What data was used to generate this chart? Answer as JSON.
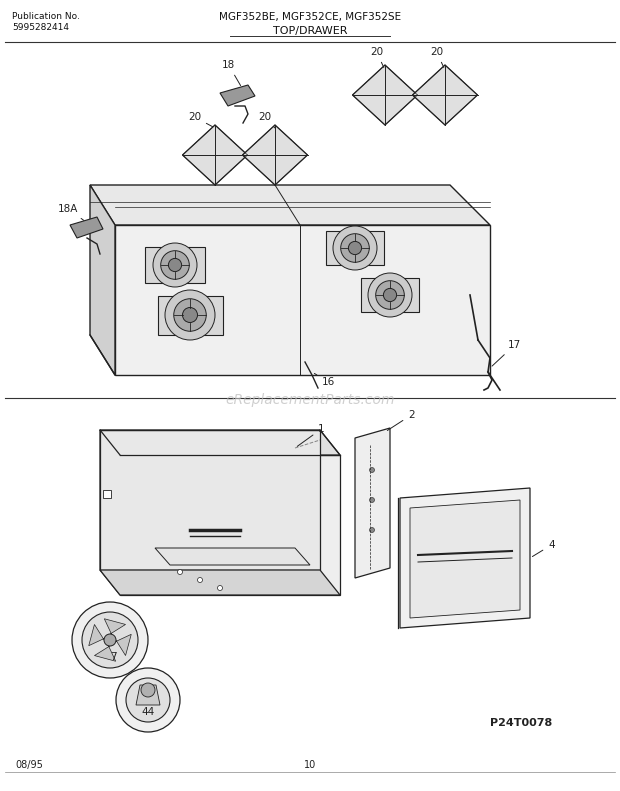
{
  "title_model": "MGF352BE, MGF352CE, MGF352SE",
  "title_section": "TOP/DRAWER",
  "pub_no_label": "Publication No.",
  "pub_no": "5995282414",
  "page_no": "10",
  "date_code": "08/95",
  "part_code": "P24T0078",
  "watermark": "eReplacementParts.com",
  "bg_color": "#ffffff",
  "line_color": "#333333",
  "text_color": "#111111",
  "watermark_color": "#cccccc"
}
